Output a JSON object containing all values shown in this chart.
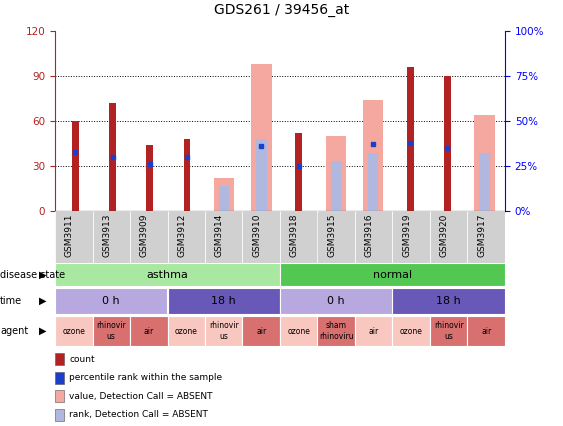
{
  "title": "GDS261 / 39456_at",
  "samples": [
    "GSM3911",
    "GSM3913",
    "GSM3909",
    "GSM3912",
    "GSM3914",
    "GSM3910",
    "GSM3918",
    "GSM3915",
    "GSM3916",
    "GSM3919",
    "GSM3920",
    "GSM3917"
  ],
  "count_values": [
    60,
    72,
    44,
    48,
    null,
    null,
    52,
    null,
    null,
    96,
    90,
    null
  ],
  "rank_values": [
    33,
    30,
    26,
    30,
    null,
    36,
    25,
    null,
    37,
    38,
    35,
    null
  ],
  "absent_value_values": [
    null,
    null,
    null,
    null,
    22,
    98,
    null,
    50,
    74,
    null,
    null,
    64
  ],
  "absent_rank_values": [
    null,
    null,
    null,
    null,
    14,
    40,
    null,
    28,
    32,
    null,
    null,
    32
  ],
  "left_ylim": [
    0,
    120
  ],
  "right_ylim": [
    0,
    100
  ],
  "left_yticks": [
    0,
    30,
    60,
    90,
    120
  ],
  "right_yticks": [
    0,
    25,
    50,
    75,
    100
  ],
  "right_yticklabels": [
    "0%",
    "25%",
    "50%",
    "75%",
    "100%"
  ],
  "color_count": "#b22222",
  "color_rank": "#1a3fcc",
  "color_absent_value": "#f4a8a0",
  "color_absent_rank": "#b0b8e0",
  "disease_state_groups": [
    {
      "label": "asthma",
      "start": 0,
      "end": 6,
      "color": "#a8e8a0"
    },
    {
      "label": "normal",
      "start": 6,
      "end": 12,
      "color": "#52c852"
    }
  ],
  "time_groups": [
    {
      "label": "0 h",
      "start": 0,
      "end": 3,
      "color": "#b8a8e0"
    },
    {
      "label": "18 h",
      "start": 3,
      "end": 6,
      "color": "#6858b8"
    },
    {
      "label": "0 h",
      "start": 6,
      "end": 9,
      "color": "#b8a8e0"
    },
    {
      "label": "18 h",
      "start": 9,
      "end": 12,
      "color": "#6858b8"
    }
  ],
  "agent_groups": [
    {
      "label": "ozone",
      "start": 0,
      "end": 1,
      "color": "#f8c8c0"
    },
    {
      "label": "rhinovir\nus",
      "start": 1,
      "end": 2,
      "color": "#d87070"
    },
    {
      "label": "air",
      "start": 2,
      "end": 3,
      "color": "#d87070"
    },
    {
      "label": "ozone",
      "start": 3,
      "end": 4,
      "color": "#f8c8c0"
    },
    {
      "label": "rhinovir\nus",
      "start": 4,
      "end": 5,
      "color": "#f8c8c0"
    },
    {
      "label": "air",
      "start": 5,
      "end": 6,
      "color": "#d87070"
    },
    {
      "label": "ozone",
      "start": 6,
      "end": 7,
      "color": "#f8c8c0"
    },
    {
      "label": "sham\nrhinoviru",
      "start": 7,
      "end": 8,
      "color": "#d87070"
    },
    {
      "label": "air",
      "start": 8,
      "end": 9,
      "color": "#f8c8c0"
    },
    {
      "label": "ozone",
      "start": 9,
      "end": 10,
      "color": "#f8c8c0"
    },
    {
      "label": "rhinovir\nus",
      "start": 10,
      "end": 11,
      "color": "#d87070"
    },
    {
      "label": "air",
      "start": 11,
      "end": 12,
      "color": "#d87070"
    }
  ],
  "legend_items": [
    {
      "color": "#b22222",
      "label": "count"
    },
    {
      "color": "#1a3fcc",
      "label": "percentile rank within the sample"
    },
    {
      "color": "#f4a8a0",
      "label": "value, Detection Call = ABSENT"
    },
    {
      "color": "#b0b8e0",
      "label": "rank, Detection Call = ABSENT"
    }
  ],
  "row_labels": [
    "disease state",
    "time",
    "agent"
  ],
  "figsize": [
    5.63,
    4.26
  ],
  "dpi": 100
}
